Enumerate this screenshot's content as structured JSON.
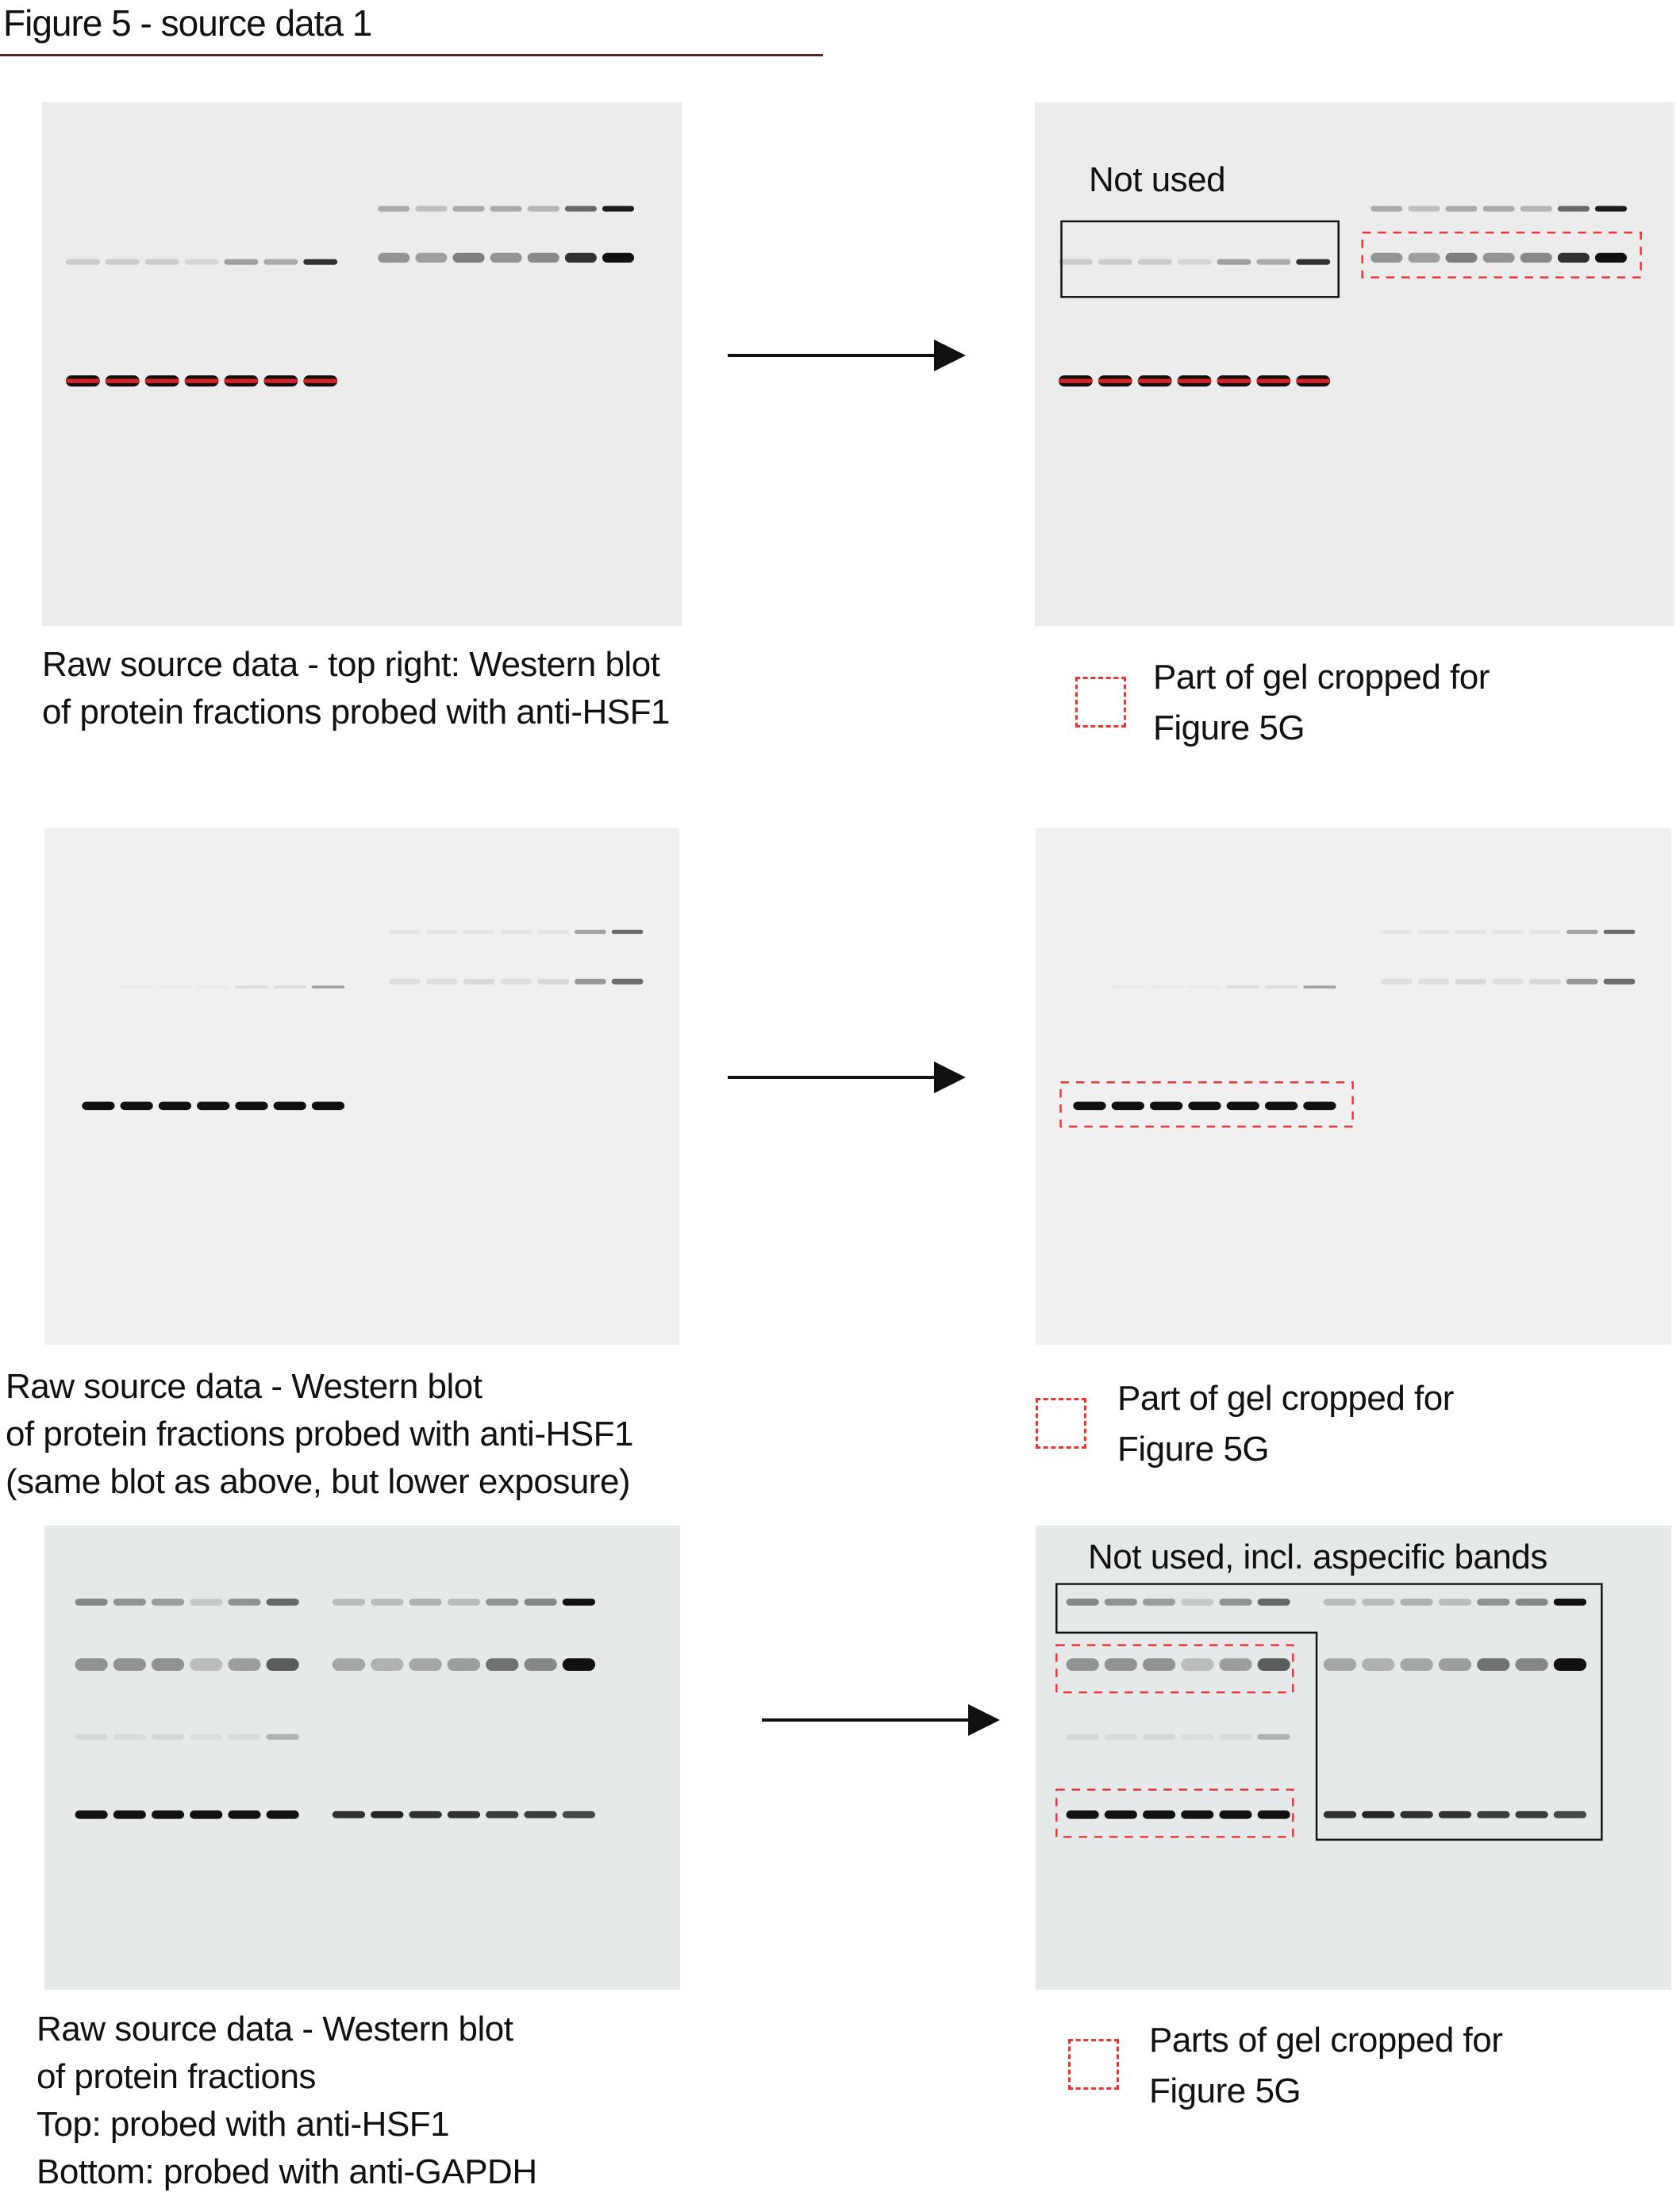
{
  "title": "Figure 5 - source data 1",
  "colors": {
    "crop_box": "#ee3333",
    "unused_box": "#111111",
    "title_rule": "#5a2a2a"
  },
  "panels": [
    {
      "raw_caption": [
        "Raw source data - top right: Western blot",
        "of protein fractions probed with anti-HSF1"
      ],
      "annotation": "Not used",
      "legend": [
        "Part of gel cropped for",
        "Figure 5G"
      ]
    },
    {
      "raw_caption": [
        "Raw source data -  Western blot",
        "of protein fractions probed with anti-HSF1",
        "(same blot as above, but lower exposure)"
      ],
      "legend": [
        "Part of gel cropped for",
        "Figure 5G"
      ]
    },
    {
      "raw_caption": [
        "Raw source data -  Western blot",
        "of protein fractions",
        "Top: probed with anti-HSF1",
        "Bottom: probed with anti-GAPDH"
      ],
      "annotation": "Not used, incl. aspecific bands",
      "legend": [
        "Parts of gel cropped for",
        "Figure 5G"
      ]
    }
  ]
}
